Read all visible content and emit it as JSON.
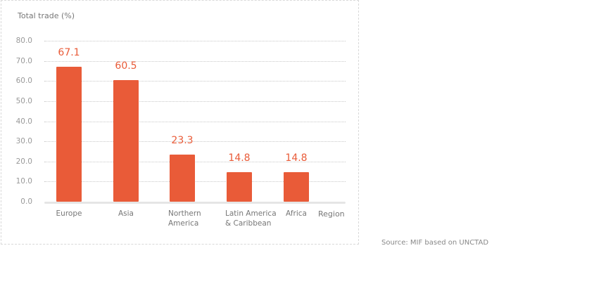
{
  "chart_data": {
    "type": "bar",
    "title": "",
    "ylabel": "Total trade (%)",
    "xlabel": "Region",
    "categories": [
      "Europe",
      "Asia",
      "Northern America",
      "Latin America & Caribbean",
      "Africa"
    ],
    "category_lines": [
      [
        "Europe"
      ],
      [
        "Asia"
      ],
      [
        "Northern",
        "America"
      ],
      [
        "Latin America",
        "& Caribbean"
      ],
      [
        "Africa"
      ]
    ],
    "values": [
      67.1,
      60.5,
      23.3,
      14.8,
      14.8
    ],
    "value_labels": [
      "67.1",
      "60.5",
      "23.3",
      "14.8",
      "14.8"
    ],
    "ylim": [
      0,
      80
    ],
    "yticks": [
      "80.0",
      "70.0",
      "60.0",
      "50.0",
      "40.0",
      "30.0",
      "20.0",
      "10.0",
      "0.0"
    ],
    "grid": true,
    "legend": null,
    "bar_color": "#e95b38"
  },
  "source": "Source: MIF based on UNCTAD"
}
